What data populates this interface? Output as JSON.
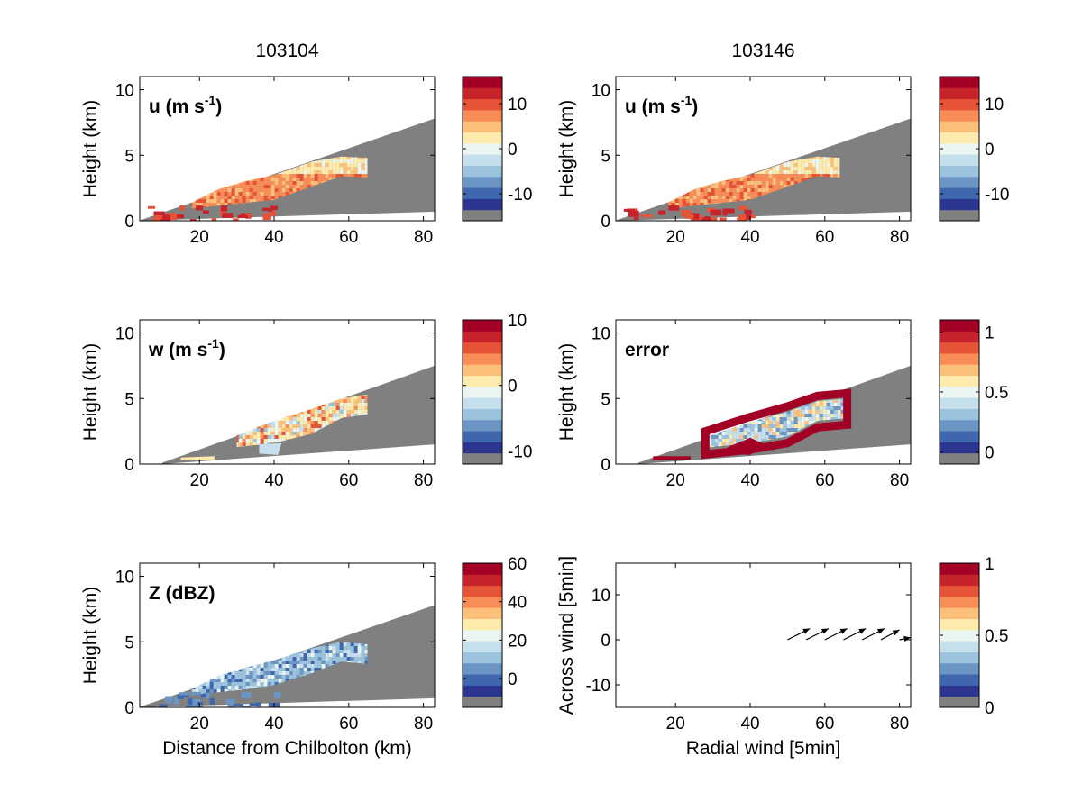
{
  "colormap": [
    "#808080",
    "#2c3690",
    "#3f67ad",
    "#6b95c4",
    "#9bc3de",
    "#c5e0ec",
    "#ebf5f2",
    "#fdebae",
    "#fdc07a",
    "#f98d57",
    "#e65336",
    "#c7232b",
    "#a30026"
  ],
  "chart_data": [
    {
      "id": "u_103104",
      "type": "heatmap",
      "title": "103104",
      "panel_label": "u (m s",
      "panel_label_sup": "-1",
      "panel_label_end": ")",
      "xlabel": "",
      "ylabel": "Height (km)",
      "xlim": [
        4,
        83
      ],
      "ylim": [
        0,
        11
      ],
      "xticks": [
        20,
        40,
        60,
        80
      ],
      "yticks": [
        0,
        5,
        10
      ],
      "colorbar": {
        "ticks": [
          10,
          0,
          -10
        ],
        "range": [
          -16,
          16
        ]
      },
      "field": "u",
      "echo_top_km": [
        [
          18,
          1.4
        ],
        [
          25,
          2.4
        ],
        [
          32,
          3.0
        ],
        [
          40,
          3.5
        ],
        [
          50,
          4.5
        ],
        [
          58,
          4.9
        ],
        [
          65,
          4.8
        ]
      ]
    },
    {
      "id": "u_103146",
      "type": "heatmap",
      "title": "103146",
      "panel_label": "u (m s",
      "panel_label_sup": "-1",
      "panel_label_end": ")",
      "xlabel": "",
      "ylabel": "Height (km)",
      "xlim": [
        4,
        83
      ],
      "ylim": [
        0,
        11
      ],
      "xticks": [
        20,
        40,
        60,
        80
      ],
      "yticks": [
        0,
        5,
        10
      ],
      "colorbar": {
        "ticks": [
          10,
          0,
          -10
        ],
        "range": [
          -16,
          16
        ]
      },
      "field": "u",
      "echo_top_km": [
        [
          18,
          1.4
        ],
        [
          25,
          2.4
        ],
        [
          32,
          3.0
        ],
        [
          40,
          3.5
        ],
        [
          50,
          4.5
        ],
        [
          58,
          4.9
        ],
        [
          64,
          4.8
        ]
      ]
    },
    {
      "id": "w_103104",
      "type": "heatmap",
      "title": "",
      "panel_label": "w (m s",
      "panel_label_sup": "-1",
      "panel_label_end": ")",
      "xlabel": "",
      "ylabel": "Height (km)",
      "xlim": [
        4,
        83
      ],
      "ylim": [
        0,
        11
      ],
      "xticks": [
        20,
        40,
        60,
        80
      ],
      "yticks": [
        0,
        5,
        10
      ],
      "colorbar": {
        "ticks": [
          10,
          0,
          -10
        ],
        "range": [
          -12,
          10
        ]
      },
      "field": "w",
      "echo_top_km": [
        [
          30,
          2.2
        ],
        [
          40,
          3.3
        ],
        [
          50,
          4.2
        ],
        [
          58,
          5.0
        ],
        [
          65,
          5.3
        ]
      ]
    },
    {
      "id": "error_103146",
      "type": "heatmap",
      "title": "",
      "panel_label": "error",
      "panel_label_sup": "",
      "panel_label_end": "",
      "xlabel": "",
      "ylabel": "Height (km)",
      "xlim": [
        4,
        83
      ],
      "ylim": [
        0,
        11
      ],
      "xticks": [
        20,
        40,
        60,
        80
      ],
      "yticks": [
        0,
        5,
        10
      ],
      "colorbar": {
        "ticks": [
          1,
          0.5,
          0
        ],
        "range": [
          -0.1,
          1.1
        ]
      },
      "field": "error",
      "echo_top_km": [
        [
          28,
          2.1
        ],
        [
          40,
          3.2
        ],
        [
          50,
          4.0
        ],
        [
          58,
          4.8
        ],
        [
          66,
          5.0
        ]
      ]
    },
    {
      "id": "Z_103104",
      "type": "heatmap",
      "title": "",
      "panel_label": "Z (dBZ)",
      "panel_label_sup": "",
      "panel_label_end": "",
      "xlabel": "Distance from Chilbolton (km)",
      "ylabel": "Height (km)",
      "xlim": [
        4,
        83
      ],
      "ylim": [
        0,
        11
      ],
      "xticks": [
        20,
        40,
        60,
        80
      ],
      "yticks": [
        0,
        5,
        10
      ],
      "colorbar": {
        "ticks": [
          60,
          40,
          20,
          0
        ],
        "range": [
          -15,
          60
        ]
      },
      "field": "Z",
      "echo_top_km": [
        [
          18,
          1.4
        ],
        [
          25,
          2.4
        ],
        [
          32,
          3.0
        ],
        [
          40,
          3.6
        ],
        [
          50,
          4.5
        ],
        [
          58,
          5.0
        ],
        [
          65,
          4.8
        ]
      ]
    },
    {
      "id": "wind_vectors",
      "type": "scatter",
      "title": "",
      "panel_label": "",
      "panel_label_sup": "",
      "panel_label_end": "",
      "xlabel": "Radial wind [5min]",
      "ylabel": "Across wind [5min]",
      "xlim": [
        4,
        83
      ],
      "ylim": [
        -15,
        17
      ],
      "xticks": [
        20,
        40,
        60,
        80
      ],
      "yticks": [
        10,
        0,
        -10
      ],
      "colorbar": {
        "ticks": [
          1,
          0.5,
          0
        ],
        "range": [
          0,
          1
        ]
      },
      "arrows": [
        {
          "x": 50,
          "y": 0,
          "dx": 6,
          "dy": 2.5
        },
        {
          "x": 55,
          "y": 0,
          "dx": 6,
          "dy": 2.5
        },
        {
          "x": 60,
          "y": 0,
          "dx": 6,
          "dy": 2.5
        },
        {
          "x": 65,
          "y": 0,
          "dx": 6,
          "dy": 2.5
        },
        {
          "x": 70,
          "y": 0,
          "dx": 6,
          "dy": 2.5
        },
        {
          "x": 75,
          "y": 0,
          "dx": 5,
          "dy": 2.2
        },
        {
          "x": 80,
          "y": 0,
          "dx": 3,
          "dy": 0.5
        }
      ]
    }
  ]
}
